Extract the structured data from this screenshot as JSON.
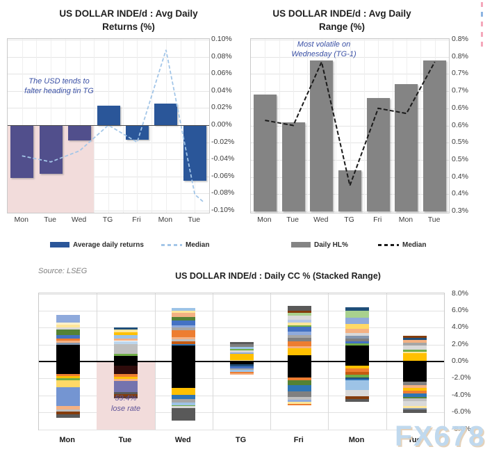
{
  "watermark": {
    "text": "FX678",
    "color": "#BDD7EE",
    "shadow": "#E3D0B8"
  },
  "source_note": "Source: LSEG",
  "edge_marks": [
    {
      "y": 3,
      "color": "#F4A7BB"
    },
    {
      "y": 17,
      "color": "#8DB4E2"
    },
    {
      "y": 31,
      "color": "#F4A7BB"
    },
    {
      "y": 46,
      "color": "#F4A7BB"
    },
    {
      "y": 60,
      "color": "#F4A7BB"
    }
  ],
  "chart_data": [
    {
      "id": "avg-daily-returns",
      "type": "bar",
      "title_lines": [
        "US DOLLAR INDE/d : Avg Daily",
        "Returns (%)"
      ],
      "categories": [
        "Mon",
        "Tue",
        "Wed",
        "TG",
        "Fri",
        "Mon",
        "Tue"
      ],
      "series": [
        {
          "name": "Average daily returns",
          "type": "bar",
          "values": [
            -0.062,
            -0.057,
            -0.018,
            0.023,
            -0.017,
            0.025,
            -0.065
          ]
        },
        {
          "name": "Median",
          "type": "line",
          "values": [
            -0.036,
            -0.043,
            -0.03,
            0.0,
            -0.02,
            0.088,
            -0.081
          ],
          "tail": -0.09
        }
      ],
      "ylim": [
        -0.1,
        0.1
      ],
      "ytick_labels": [
        "0.10%",
        "0.08%",
        "0.06%",
        "0.04%",
        "0.02%",
        "0.00%",
        "-0.02%",
        "-0.04%",
        "-0.06%",
        "-0.08%",
        "-0.10%"
      ],
      "annotation_lines": [
        "The USD tends to",
        "falter heading tin TG"
      ],
      "highlight_categories": [
        "Mon",
        "Tue",
        "Wed"
      ],
      "colors": {
        "bar": "#2A5699",
        "bar_highlighted": "#514F8C",
        "median": "#A3C6E8",
        "highlight": "#F2DCDB",
        "annotation": "#3A50A5"
      },
      "legend_position": "bottom"
    },
    {
      "id": "avg-daily-range",
      "type": "bar",
      "title_lines": [
        "US DOLLAR INDE/d : Avg Daily",
        "Range (%)"
      ],
      "categories": [
        "Mon",
        "Tue",
        "Wed",
        "TG",
        "Fri",
        "Mon",
        "Tue"
      ],
      "series": [
        {
          "name": "Daily HL%",
          "type": "bar",
          "values": [
            0.64,
            0.56,
            0.74,
            0.42,
            0.63,
            0.67,
            0.74
          ]
        },
        {
          "name": "Median",
          "type": "line",
          "values": [
            0.565,
            0.55,
            0.735,
            0.375,
            0.6,
            0.585,
            0.735
          ]
        }
      ],
      "ylim": [
        0.3,
        0.8
      ],
      "ytick_labels": [
        "0.8%",
        "0.8%",
        "0.7%",
        "0.7%",
        "0.6%",
        "0.6%",
        "0.5%",
        "0.5%",
        "0.4%",
        "0.4%",
        "0.3%"
      ],
      "annotation_lines": [
        "Most volatile on",
        "Wednesday (TG-1)"
      ],
      "colors": {
        "bar": "#848484",
        "median": "#1A1A1A",
        "annotation": "#3A50A5"
      },
      "legend_position": "bottom"
    },
    {
      "id": "daily-cc-stacked",
      "type": "bar",
      "stacked": true,
      "title": "US DOLLAR INDE/d : Daily CC % (Stacked Range)",
      "categories": [
        "Mon",
        "Tue",
        "Wed",
        "TG",
        "Fri",
        "Mon",
        "Tue"
      ],
      "ylim": [
        -8,
        8
      ],
      "ytick_labels": [
        "8.0%",
        "6.0%",
        "4.0%",
        "2.0%",
        "0.0%",
        "-2.0%",
        "-4.0%",
        "-6.0%",
        "-8.0%"
      ],
      "annotation_lines": [
        "59.4%",
        "lose rate"
      ],
      "highlight_category": "Tue",
      "colors": {
        "highlight": "#F2DCDB",
        "annotation": "#5F5398"
      },
      "bars": [
        {
          "category": "Mon",
          "top": 5.53,
          "segments": [
            [
              "#8FAADC",
              0.9
            ],
            [
              "#FFF2CC",
              0.25
            ],
            [
              "#FFE699",
              0.33
            ],
            [
              "#D9D9D9",
              0.27
            ],
            [
              "#548235",
              0.69
            ],
            [
              "#4472C4",
              0.36
            ],
            [
              "#ED7D31",
              0.27
            ],
            [
              "#F4B183",
              0.25
            ],
            [
              "#8497B0",
              0.22
            ],
            [
              "#000000",
              3.45
            ],
            [
              "#ED7D31",
              0.27
            ],
            [
              "#FFC000",
              0.27
            ],
            [
              "#70AD47",
              0.22
            ],
            [
              "#FFD966",
              0.82
            ],
            [
              "#7495D2",
              2.25
            ],
            [
              "#F4B183",
              0.36
            ],
            [
              "#BFBFBF",
              0.25
            ],
            [
              "#843C0C",
              0.36
            ],
            [
              "#595959",
              0.41
            ]
          ]
        },
        {
          "category": "Tue",
          "top": 4.03,
          "segments": [
            [
              "#1F4E79",
              0.27
            ],
            [
              "#FFE699",
              0.3
            ],
            [
              "#FFC000",
              0.33
            ],
            [
              "#9DC3E6",
              0.44
            ],
            [
              "#F4B183",
              0.27
            ],
            [
              "#BDD7EE",
              0.38
            ],
            [
              "#BFBFBF",
              1.1
            ],
            [
              "#70AD47",
              0.27
            ],
            [
              "#000000",
              1.17
            ],
            [
              "#2F0B0B",
              1.01
            ],
            [
              "#ED7D31",
              0.27
            ],
            [
              "#FFC000",
              0.27
            ],
            [
              "#F4B183",
              0.27
            ],
            [
              "#7473AE",
              1.3
            ],
            [
              "#595959",
              0.27
            ],
            [
              "#843C0C",
              0.22
            ],
            [
              "#5E3A35",
              0.27
            ]
          ]
        },
        {
          "category": "Wed",
          "top": 6.28,
          "segments": [
            [
              "#9DC3E6",
              0.25
            ],
            [
              "#FFE699",
              0.3
            ],
            [
              "#F4B183",
              0.47
            ],
            [
              "#548235",
              0.41
            ],
            [
              "#4472C4",
              0.6
            ],
            [
              "#8FAADC",
              0.27
            ],
            [
              "#A6A6A6",
              0.27
            ],
            [
              "#ED7D31",
              0.82
            ],
            [
              "#F4B183",
              0.27
            ],
            [
              "#BFBFBF",
              0.22
            ],
            [
              "#C55A11",
              0.33
            ],
            [
              "#2E75B6",
              0.16
            ],
            [
              "#000000",
              5.0
            ],
            [
              "#FFC000",
              0.82
            ],
            [
              "#2E75B6",
              0.55
            ],
            [
              "#A6A6A6",
              0.41
            ],
            [
              "#9DC3E6",
              0.27
            ],
            [
              "#70AD47",
              0.14
            ],
            [
              "#D9D9D9",
              0.22
            ],
            [
              "#595959",
              1.5
            ]
          ]
        },
        {
          "category": "TG",
          "top": 2.3,
          "segments": [
            [
              "#595959",
              0.27
            ],
            [
              "#808080",
              0.27
            ],
            [
              "#9DC3E6",
              0.25
            ],
            [
              "#70AD47",
              0.22
            ],
            [
              "#D9D9D9",
              0.19
            ],
            [
              "#8FAADC",
              0.22
            ],
            [
              "#FFC000",
              0.69
            ],
            [
              "#FFE699",
              0.19
            ],
            [
              "#000000",
              0.36
            ],
            [
              "#1F4E79",
              0.22
            ],
            [
              "#4472C4",
              0.22
            ],
            [
              "#A6A6A6",
              0.22
            ],
            [
              "#9DC3E6",
              0.22
            ],
            [
              "#ED7D31",
              0.16
            ],
            [
              "#F4B183",
              0.14
            ]
          ]
        },
        {
          "category": "Fri",
          "top": 6.56,
          "segments": [
            [
              "#595959",
              0.55
            ],
            [
              "#843C0C",
              0.27
            ],
            [
              "#A9D18E",
              0.33
            ],
            [
              "#D9D9D9",
              0.49
            ],
            [
              "#B4C7E7",
              0.33
            ],
            [
              "#FFE699",
              0.33
            ],
            [
              "#70AD47",
              0.16
            ],
            [
              "#4472C4",
              0.6
            ],
            [
              "#8FAADC",
              0.41
            ],
            [
              "#A6A6A6",
              0.27
            ],
            [
              "#808080",
              0.41
            ],
            [
              "#ED7D31",
              0.6
            ],
            [
              "#F4B183",
              0.22
            ],
            [
              "#FFC000",
              0.82
            ],
            [
              "#000000",
              2.68
            ],
            [
              "#ED7D31",
              0.27
            ],
            [
              "#548235",
              0.6
            ],
            [
              "#2E75B6",
              0.71
            ],
            [
              "#808080",
              0.66
            ],
            [
              "#BFBFBF",
              0.36
            ],
            [
              "#8FAADC",
              0.27
            ],
            [
              "#FFE699",
              0.19
            ],
            [
              "#ED7D31",
              0.16
            ]
          ]
        },
        {
          "category": "Mon",
          "top": 6.36,
          "segments": [
            [
              "#1F4E79",
              0.41
            ],
            [
              "#A9D18E",
              0.82
            ],
            [
              "#8FAADC",
              0.69
            ],
            [
              "#FFD966",
              0.55
            ],
            [
              "#F4B183",
              0.55
            ],
            [
              "#D9D9D9",
              0.27
            ],
            [
              "#8497B0",
              0.36
            ],
            [
              "#808080",
              0.33
            ],
            [
              "#4472C4",
              0.27
            ],
            [
              "#70AD47",
              0.22
            ],
            [
              "#000000",
              2.38
            ],
            [
              "#FFC000",
              0.36
            ],
            [
              "#ED7D31",
              0.38
            ],
            [
              "#C55A11",
              0.36
            ],
            [
              "#70AD47",
              0.27
            ],
            [
              "#1F4E79",
              0.22
            ],
            [
              "#2E75B6",
              0.14
            ],
            [
              "#9DC3E6",
              1.15
            ],
            [
              "#D9D9D9",
              0.77
            ],
            [
              "#843C0C",
              0.33
            ],
            [
              "#595959",
              0.27
            ]
          ]
        },
        {
          "category": "Tue",
          "top": 3.06,
          "segments": [
            [
              "#843C0C",
              0.27
            ],
            [
              "#1F4E79",
              0.27
            ],
            [
              "#F4B183",
              0.27
            ],
            [
              "#A6A6A6",
              0.36
            ],
            [
              "#D9D9D9",
              0.47
            ],
            [
              "#70AD47",
              0.27
            ],
            [
              "#FFE699",
              0.14
            ],
            [
              "#FFC000",
              1.09
            ],
            [
              "#000000",
              2.33
            ],
            [
              "#808080",
              0.41
            ],
            [
              "#F4B183",
              0.33
            ],
            [
              "#FFC000",
              0.27
            ],
            [
              "#ED7D31",
              0.36
            ],
            [
              "#2E75B6",
              0.41
            ],
            [
              "#548235",
              0.19
            ],
            [
              "#BFBFBF",
              0.27
            ],
            [
              "#D9D9D9",
              0.63
            ],
            [
              "#FFE699",
              0.22
            ],
            [
              "#8497B0",
              0.19
            ],
            [
              "#595959",
              0.41
            ]
          ]
        }
      ]
    }
  ]
}
